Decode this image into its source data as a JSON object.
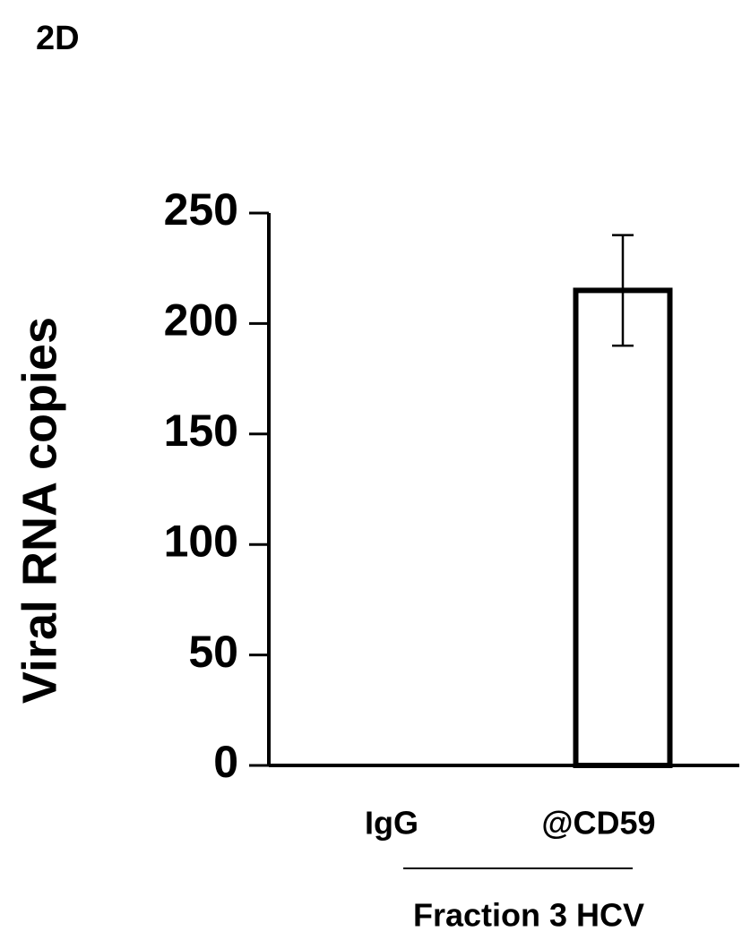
{
  "chart_data": {
    "type": "bar",
    "title": "2D",
    "y_label": "Viral RNA copies",
    "categories": [
      "IgG",
      "@CD59"
    ],
    "values": [
      0,
      215
    ],
    "errors": [
      null,
      25
    ],
    "group_label": "Fraction 3 HCV",
    "color": "#ffffff",
    "ylim": [
      0,
      250
    ],
    "yticks": [
      0,
      50,
      100,
      150,
      200,
      250
    ],
    "grid": false
  }
}
